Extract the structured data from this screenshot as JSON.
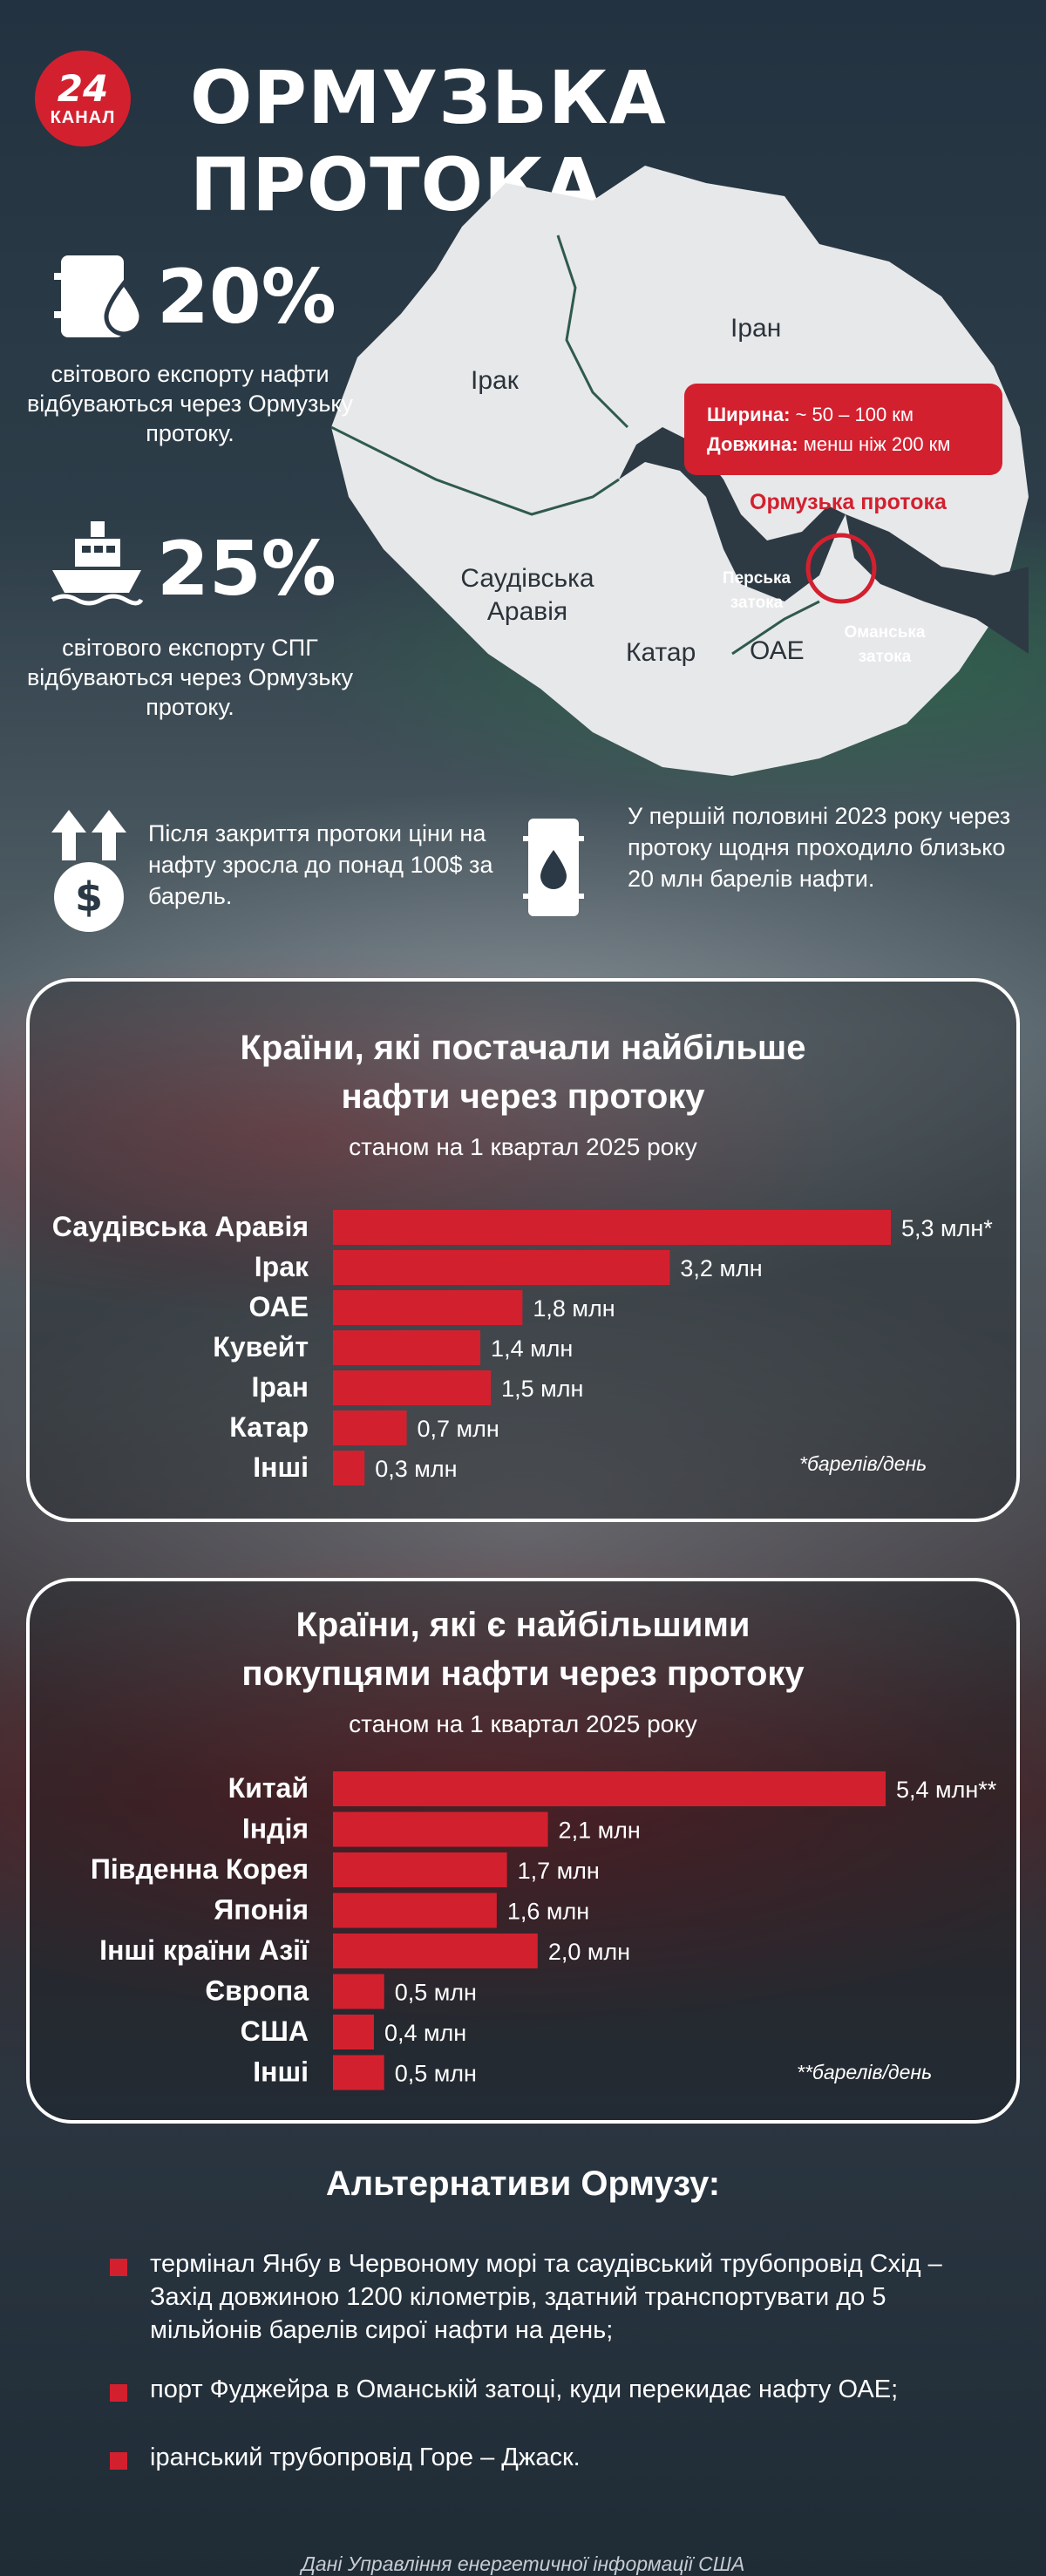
{
  "header": {
    "logo_number": "24",
    "logo_word": "КАНАЛ",
    "title": "ОРМУЗЬКА ПРОТОКА"
  },
  "map": {
    "labels": {
      "iran": "Іран",
      "iraq": "Ірак",
      "saudi": "Саудівська Аравія",
      "qatar": "Катар",
      "uae": "ОАЕ",
      "persian_gulf": "Перська затока",
      "oman_gulf": "Оманська затока",
      "strait": "Ормузька протока"
    },
    "info_box": {
      "width_label": "Ширина:",
      "width_value": "~ 50 – 100 км",
      "length_label": "Довжина:",
      "length_value": "менш ніж 200 км"
    },
    "colors": {
      "land": "#e7e8ea",
      "border": "#2f5a4c",
      "accent": "#d3202f"
    }
  },
  "stats": [
    {
      "icon": "oil-drop-barrel-icon",
      "value": "20%",
      "text": "світового експорту нафти відбуваються через Ормузьку протоку."
    },
    {
      "icon": "tanker-ship-icon",
      "value": "25%",
      "text": "світового експорту СПГ відбуваються через Ормузьку протоку."
    }
  ],
  "facts": [
    {
      "icon": "price-up-dollar-icon",
      "text": "Після закриття протоки ціни на нафту зросла до понад 100$ за барель."
    },
    {
      "icon": "oil-barrel-icon",
      "text": "У першій половині 2023 року через протоку щодня проходило близько 20 млн барелів нафти."
    }
  ],
  "chart_data": [
    {
      "type": "bar",
      "orientation": "horizontal",
      "title": "Країни, які постачали найбільше нафти через протоку",
      "subtitle": "станом на 1 квартал 2025 року",
      "categories": [
        "Саудівська Аравія",
        "Ірак",
        "ОАЕ",
        "Кувейт",
        "Іран",
        "Катар",
        "Інші"
      ],
      "values": [
        5.3,
        3.2,
        1.8,
        1.4,
        1.5,
        0.7,
        0.3
      ],
      "value_labels": [
        "5,3 млн*",
        "3,2 млн",
        "1,8 млн",
        "1,4 млн",
        "1,5 млн",
        "0,7 млн",
        "0,3 млн"
      ],
      "note": "*барелів/день",
      "bar_color": "#d3202f",
      "xlim": [
        0,
        5.3
      ]
    },
    {
      "type": "bar",
      "orientation": "horizontal",
      "title": "Країни, які є найбільшими покупцями нафти через протоку",
      "subtitle": "станом на 1 квартал 2025 року",
      "categories": [
        "Китай",
        "Індія",
        "Південна Корея",
        "Японія",
        "Інші країни Азії",
        "Європа",
        "США",
        "Інші"
      ],
      "values": [
        5.4,
        2.1,
        1.7,
        1.6,
        2.0,
        0.5,
        0.4,
        0.5
      ],
      "value_labels": [
        "5,4 млн**",
        "2,1 млн",
        "1,7 млн",
        "1,6 млн",
        "2,0 млн",
        "0,5 млн",
        "0,4 млн",
        "0,5 млн"
      ],
      "note": "**барелів/день",
      "bar_color": "#d3202f",
      "xlim": [
        0,
        5.4
      ]
    }
  ],
  "chart_titles": [
    {
      "line1": "Країни, які постачали найбільше",
      "line2": "нафти через протоку"
    },
    {
      "line1": "Країни, які є найбільшими",
      "line2": "покупцями нафти через протоку"
    }
  ],
  "alternatives": {
    "title": "Альтернативи Ормузу:",
    "items": [
      "термінал Янбу в Червоному морі та саудівський трубопровід Схід – Захід довжиною 1200 кілометрів, здатний транспортувати до 5 мільйонів барелів сирої нафти на день;",
      "порт Фуджейра в Оманській затоці, куди перекидає нафту ОАЕ;",
      "іранський трубопровід Горе – Джаск."
    ]
  },
  "source": "Дані Управління енергетичної інформації США"
}
